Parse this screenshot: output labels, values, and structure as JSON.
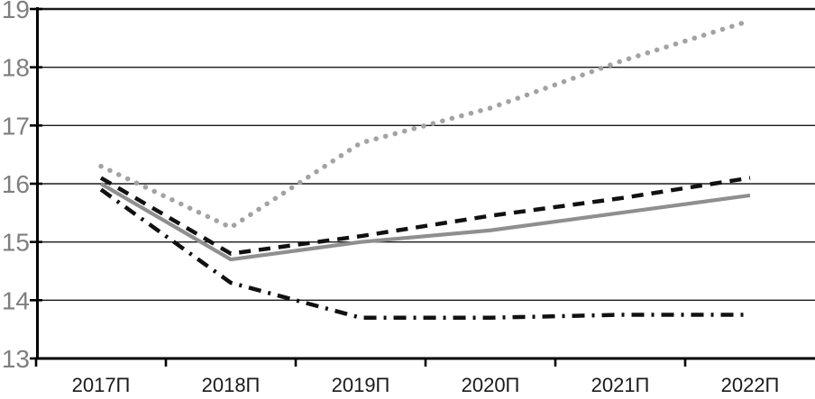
{
  "chart_data": {
    "type": "line",
    "title": "",
    "xlabel": "",
    "ylabel": "",
    "categories": [
      "2017П",
      "2018П",
      "2019П",
      "2020П",
      "2021П",
      "2022П"
    ],
    "series": [
      {
        "name": "dotted-gray-line",
        "style": "dotted",
        "color": "#a3a3a3",
        "values": [
          16.3,
          15.25,
          16.7,
          17.3,
          18.1,
          18.8
        ]
      },
      {
        "name": "dashed-black-line",
        "style": "dashed",
        "color": "#111111",
        "values": [
          16.1,
          14.8,
          15.1,
          15.45,
          15.75,
          16.1
        ]
      },
      {
        "name": "solid-gray-line",
        "style": "solid",
        "color": "#8f8f8f",
        "values": [
          16.0,
          14.7,
          15.0,
          15.2,
          15.5,
          15.8
        ]
      },
      {
        "name": "dashdot-black-line",
        "style": "dashdot",
        "color": "#111111",
        "values": [
          15.9,
          14.3,
          13.7,
          13.7,
          13.75,
          13.75
        ]
      }
    ],
    "ylim": [
      13,
      19
    ],
    "yticks": [
      13,
      14,
      15,
      16,
      17,
      18,
      19
    ],
    "grid": true,
    "legend": false,
    "axis_color": "#000000",
    "gridline_color": "#1a1a1a",
    "ytick_label_color": "#7f7f7f",
    "xtick_label_color": "#1a1a1a"
  }
}
